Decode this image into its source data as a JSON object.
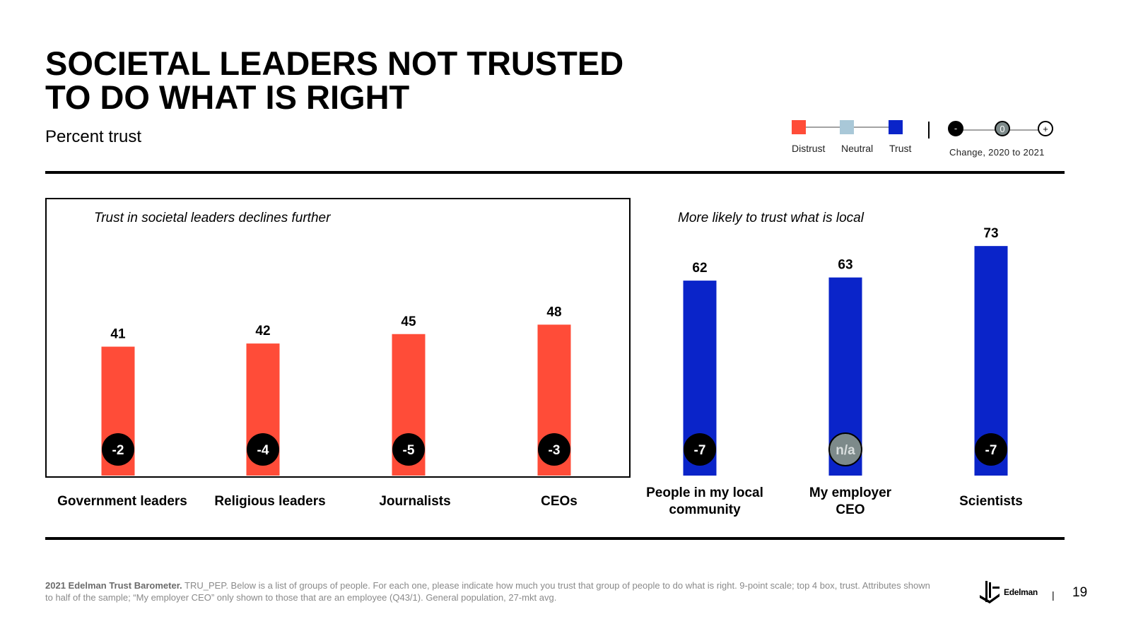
{
  "slide": {
    "title_line1": "SOCIETAL LEADERS NOT TRUSTED",
    "title_line2": "TO DO WHAT IS RIGHT",
    "subtitle": "Percent trust",
    "page_number": "19",
    "logo_text": "Edelman",
    "separator": "|"
  },
  "legend": {
    "items": [
      {
        "label": "Distrust",
        "color": "#ff4c38"
      },
      {
        "label": "Neutral",
        "color": "#a9c8d8"
      },
      {
        "label": "Trust",
        "color": "#0a24c9"
      }
    ],
    "change": {
      "minus_symbol": "-",
      "zero_symbol": "0",
      "plus_symbol": "+",
      "label": "Change, 2020 to 2021"
    }
  },
  "panels": {
    "left_title": "Trust in societal leaders declines further",
    "right_title": "More likely to trust what is local"
  },
  "footnote": {
    "source_bold": "2021 Edelman Trust Barometer.",
    "text": "TRU_PEP. Below is a list of groups of people. For each one, please indicate how much you trust that group of people to do what is right. 9-point scale; top 4 box, trust. Attributes shown to half of the sample; “My employer CEO” only shown to those that are an employee (Q43/1). General population, 27-mkt avg."
  },
  "chart_data": {
    "type": "bar",
    "categories": [
      "Government leaders",
      "Religious leaders",
      "Journalists",
      "CEOs",
      "People in my local community",
      "My employer CEO",
      "Scientists"
    ],
    "values": [
      41,
      42,
      45,
      48,
      62,
      63,
      73
    ],
    "changes": [
      "-2",
      "-4",
      "-5",
      "-3",
      "-7",
      "n/a",
      "-7"
    ],
    "bar_colors": [
      "#ff4c38",
      "#ff4c38",
      "#ff4c38",
      "#ff4c38",
      "#0a24c9",
      "#0a24c9",
      "#0a24c9"
    ],
    "change_marker_colors": [
      "#000000",
      "#000000",
      "#000000",
      "#000000",
      "#000000",
      "#7d8a8a",
      "#000000"
    ],
    "ylim": [
      0,
      100
    ],
    "grid": false
  }
}
